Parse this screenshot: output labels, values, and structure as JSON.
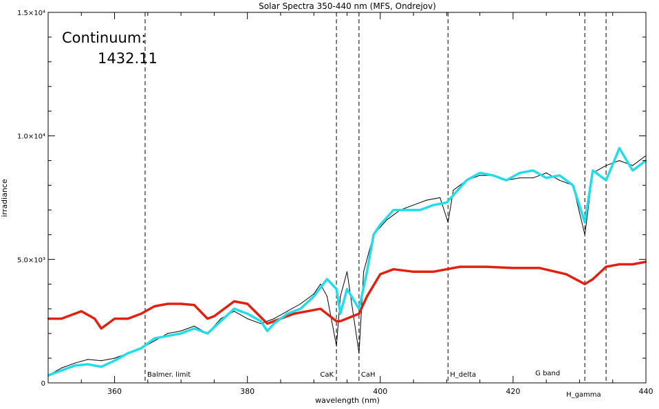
{
  "chart_data": {
    "type": "line",
    "title": "Solar Spectra 350-440 nm (MFS, Ondrejov)",
    "xlabel": "wavelength (nm)",
    "ylabel": "irradiance",
    "xlim": [
      350,
      440
    ],
    "ylim": [
      0,
      15000
    ],
    "x_ticks": [
      360,
      380,
      400,
      420,
      440
    ],
    "y_ticks": [
      {
        "value": 0,
        "label": "0"
      },
      {
        "value": 5000,
        "label": "5.0×10³"
      },
      {
        "value": 10000,
        "label": "1.0×10⁴"
      },
      {
        "value": 15000,
        "label": "1.5×10⁴"
      }
    ],
    "grid": false,
    "annotation": {
      "label": "Continuum:",
      "value": "1432.11"
    },
    "lines": [
      {
        "x": 364.6,
        "label": "Balmer. limit"
      },
      {
        "x": 393.4,
        "label": "CaK"
      },
      {
        "x": 396.8,
        "label": "CaH"
      },
      {
        "x": 410.2,
        "label": "H_delta"
      },
      {
        "x": 430.8,
        "label": "G band"
      },
      {
        "x": 434.0,
        "label": "H_gamma"
      }
    ],
    "series": [
      {
        "style": "high-resolution spectrum",
        "color": "#000000",
        "x": [
          350,
          352,
          354,
          356,
          358,
          360,
          362,
          364,
          366,
          368,
          370,
          372,
          374,
          376,
          378,
          380,
          382,
          384,
          386,
          388,
          390,
          391,
          392,
          393.4,
          394,
          395,
          396.8,
          397.5,
          399,
          401,
          403,
          405,
          407,
          409,
          410.2,
          411,
          413,
          415,
          417,
          419,
          421,
          423,
          425,
          427,
          429,
          430.8,
          432,
          434,
          436,
          438,
          440
        ],
        "y": [
          300,
          600,
          800,
          950,
          900,
          1000,
          1200,
          1400,
          1700,
          2000,
          2100,
          2300,
          2000,
          2600,
          2900,
          2600,
          2400,
          2600,
          2900,
          3200,
          3600,
          4000,
          3500,
          1500,
          3500,
          4500,
          1200,
          4500,
          6000,
          6600,
          7000,
          7200,
          7400,
          7500,
          6500,
          7800,
          8200,
          8400,
          8400,
          8200,
          8300,
          8300,
          8500,
          8200,
          8000,
          6000,
          8500,
          8800,
          9000,
          8800,
          9200
        ]
      },
      {
        "style": "smoothed spectrum",
        "color": "#22dde8",
        "x": [
          350,
          352,
          354,
          356,
          358,
          360,
          362,
          364,
          366,
          368,
          370,
          372,
          374,
          376,
          378,
          380,
          382,
          383,
          384,
          386,
          388,
          390,
          392,
          393.4,
          394,
          395,
          396.8,
          398,
          399,
          400,
          402,
          404,
          406,
          408,
          410,
          411,
          413,
          415,
          417,
          419,
          421,
          423,
          425,
          427,
          429,
          430.8,
          432,
          434,
          436,
          438,
          440
        ],
        "y": [
          300,
          500,
          700,
          750,
          650,
          900,
          1200,
          1400,
          1800,
          1900,
          2000,
          2200,
          2000,
          2500,
          3000,
          2800,
          2500,
          2100,
          2400,
          2800,
          3000,
          3500,
          4200,
          3800,
          2800,
          3800,
          3000,
          4500,
          6000,
          6400,
          7000,
          7000,
          7000,
          7200,
          7300,
          7600,
          8200,
          8500,
          8400,
          8200,
          8500,
          8600,
          8300,
          8400,
          8000,
          6500,
          8600,
          8200,
          9500,
          8600,
          9000
        ]
      },
      {
        "style": "continuum fit",
        "color": "#e02010",
        "x": [
          350,
          352,
          353,
          355,
          357,
          358,
          360,
          362,
          364,
          366,
          368,
          370,
          372,
          374,
          375,
          378,
          380,
          383,
          385,
          387,
          389,
          391,
          393.4,
          394,
          396.8,
          398,
          400,
          402,
          405,
          408,
          410,
          412,
          416,
          420,
          424,
          428,
          430.8,
          432,
          434,
          436,
          438,
          440
        ],
        "y": [
          2600,
          2600,
          2700,
          2900,
          2600,
          2200,
          2600,
          2600,
          2800,
          3100,
          3200,
          3200,
          3150,
          2600,
          2700,
          3300,
          3200,
          2400,
          2600,
          2800,
          2900,
          3000,
          2500,
          2500,
          2800,
          3500,
          4400,
          4600,
          4500,
          4500,
          4600,
          4700,
          4700,
          4650,
          4650,
          4400,
          4000,
          4200,
          4700,
          4800,
          4800,
          4900
        ]
      }
    ]
  }
}
